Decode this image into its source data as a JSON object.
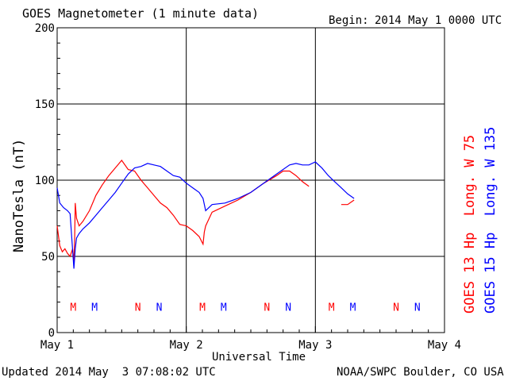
{
  "header": {
    "title": "GOES Magnetometer (1 minute data)",
    "begin_label": "Begin:",
    "begin_value": "2014 May 1 0000 UTC"
  },
  "footer": {
    "updated": "Updated 2014 May  3 07:08:02 UTC",
    "credit": "NOAA/SWPC Boulder, CO USA"
  },
  "colors": {
    "goes13": "#ff0000",
    "goes15": "#0000ff",
    "axis": "#000000"
  },
  "chart_data": {
    "type": "line",
    "xlabel": "Universal Time",
    "ylabel": "NanoTesla (nT)",
    "xlim": [
      0,
      3
    ],
    "ylim": [
      0,
      200
    ],
    "x_unit": "days since 2014 May 1 0000 UTC",
    "x_ticks": [
      {
        "value": 0,
        "label": "May 1"
      },
      {
        "value": 1,
        "label": "May 2"
      },
      {
        "value": 2,
        "label": "May 3"
      },
      {
        "value": 3,
        "label": "May 4"
      }
    ],
    "y_ticks": [
      0,
      50,
      100,
      150,
      200
    ],
    "grid": true,
    "series": [
      {
        "name": "GOES 13 Hp  Long. W 75",
        "color": "#ff0000",
        "x": [
          0.0,
          0.02,
          0.04,
          0.06,
          0.08,
          0.1,
          0.12,
          0.13,
          0.135,
          0.14,
          0.15,
          0.17,
          0.2,
          0.25,
          0.3,
          0.35,
          0.4,
          0.45,
          0.5,
          0.55,
          0.6,
          0.65,
          0.7,
          0.75,
          0.8,
          0.85,
          0.9,
          0.95,
          1.0,
          1.05,
          1.1,
          1.13,
          1.14,
          1.15,
          1.2,
          1.3,
          1.4,
          1.5,
          1.6,
          1.7,
          1.75,
          1.8,
          1.85,
          1.9,
          1.95
        ],
        "y": [
          70,
          57,
          53,
          55,
          52,
          50,
          55,
          46,
          60,
          85,
          75,
          70,
          73,
          80,
          90,
          97,
          103,
          108,
          113,
          107,
          106,
          100,
          95,
          90,
          85,
          82,
          77,
          71,
          70,
          67,
          63,
          58,
          66,
          70,
          79,
          83,
          87,
          92,
          98,
          103,
          106,
          106,
          103,
          99,
          96
        ],
        "gap_after_x": 1.95,
        "x2": [
          2.2,
          2.25,
          2.3
        ],
        "y2": [
          84,
          84,
          87
        ]
      },
      {
        "name": "GOES 15 Hp  Long. W 135",
        "color": "#0000ff",
        "x": [
          0.0,
          0.02,
          0.05,
          0.08,
          0.1,
          0.13,
          0.14,
          0.15,
          0.17,
          0.2,
          0.25,
          0.3,
          0.35,
          0.4,
          0.45,
          0.5,
          0.55,
          0.6,
          0.65,
          0.7,
          0.75,
          0.8,
          0.85,
          0.9,
          0.95,
          1.0,
          1.05,
          1.1,
          1.13,
          1.15,
          1.2,
          1.3,
          1.4,
          1.5,
          1.6,
          1.7,
          1.8,
          1.85,
          1.9,
          1.95,
          2.0,
          2.05,
          2.1,
          2.15,
          2.2,
          2.25,
          2.3
        ],
        "y": [
          95,
          85,
          82,
          80,
          78,
          42,
          55,
          62,
          65,
          68,
          72,
          77,
          82,
          87,
          92,
          98,
          104,
          108,
          109,
          111,
          110,
          109,
          106,
          103,
          102,
          98,
          95,
          92,
          88,
          80,
          84,
          85,
          88,
          92,
          98,
          104,
          110,
          111,
          110,
          110,
          112,
          108,
          103,
          99,
          95,
          91,
          88
        ]
      }
    ],
    "annotations": {
      "markers": [
        {
          "label": "M",
          "x": 0.125,
          "series": 0
        },
        {
          "label": "M",
          "x": 0.29,
          "series": 1
        },
        {
          "label": "N",
          "x": 0.625,
          "series": 0
        },
        {
          "label": "N",
          "x": 0.79,
          "series": 1
        },
        {
          "label": "M",
          "x": 1.125,
          "series": 0
        },
        {
          "label": "M",
          "x": 1.29,
          "series": 1
        },
        {
          "label": "N",
          "x": 1.625,
          "series": 0
        },
        {
          "label": "N",
          "x": 1.79,
          "series": 1
        },
        {
          "label": "M",
          "x": 2.125,
          "series": 0
        },
        {
          "label": "M",
          "x": 2.29,
          "series": 1
        },
        {
          "label": "N",
          "x": 2.625,
          "series": 0
        },
        {
          "label": "N",
          "x": 2.79,
          "series": 1
        }
      ],
      "marker_y": 17
    }
  }
}
